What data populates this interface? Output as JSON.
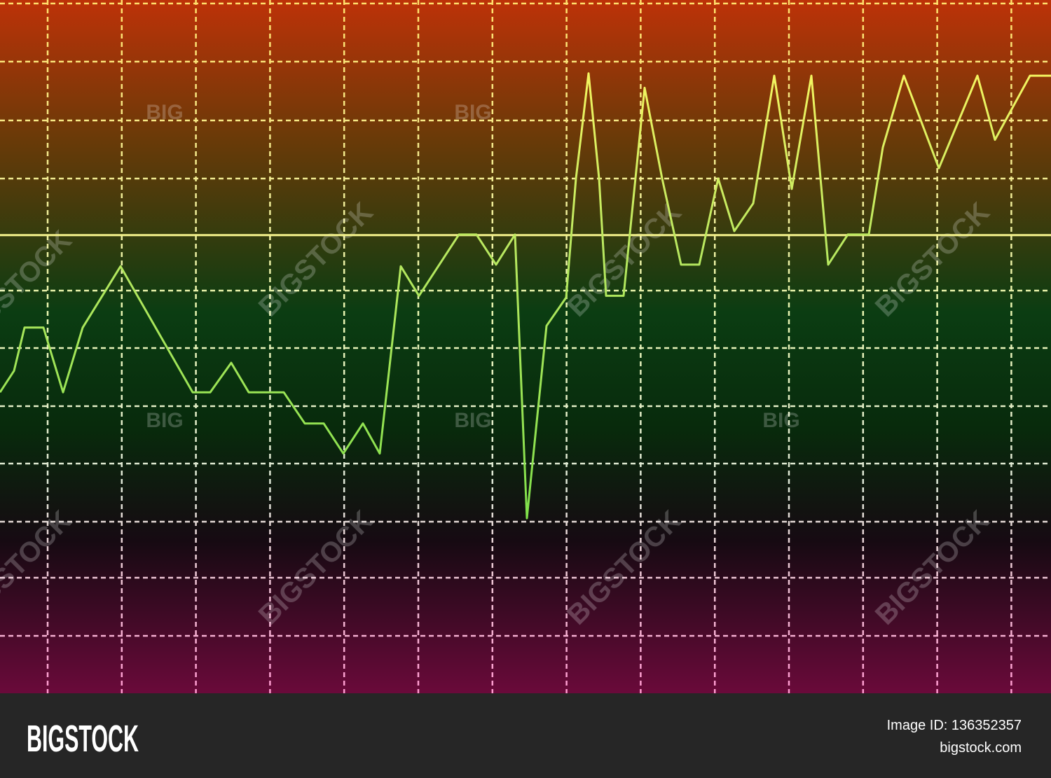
{
  "chart_data": {
    "type": "line",
    "x": [
      0,
      20,
      35,
      62,
      90,
      118,
      172,
      275,
      300,
      330,
      355,
      405,
      435,
      462,
      490,
      518,
      542,
      572,
      598,
      655,
      680,
      708,
      735,
      752,
      780,
      808,
      822,
      840,
      855,
      865,
      890,
      920,
      945,
      972,
      998,
      1025,
      1048,
      1075,
      1105,
      1130,
      1158,
      1182,
      1210,
      1240,
      1260,
      1290,
      1340,
      1395,
      1420,
      1470,
      1500
    ],
    "values": [
      5.21,
      5.58,
      6.33,
      6.33,
      5.21,
      6.33,
      7.39,
      5.21,
      5.21,
      5.72,
      5.21,
      5.21,
      4.67,
      4.67,
      4.15,
      4.67,
      4.15,
      7.39,
      6.88,
      7.94,
      7.94,
      7.42,
      7.94,
      3.03,
      6.36,
      6.85,
      8.91,
      10.73,
      8.91,
      6.88,
      6.88,
      10.48,
      8.91,
      7.42,
      7.42,
      8.91,
      8,
      8.48,
      10.69,
      8.73,
      10.69,
      7.42,
      7.94,
      7.94,
      9.45,
      10.69,
      9.09,
      10.69,
      9.58,
      10.69,
      10.69
    ],
    "xlim": [
      0,
      1500
    ],
    "ylim": [
      0,
      12
    ],
    "reference_line": 7.93,
    "grid": true,
    "color": "#7ee04a"
  },
  "watermarks": {
    "small": "BIG",
    "large": "BIGSTOCK"
  },
  "footer": {
    "logo": "BIGSTOCK",
    "image_id": "Image ID: 136352357",
    "site": "bigstock.com"
  }
}
